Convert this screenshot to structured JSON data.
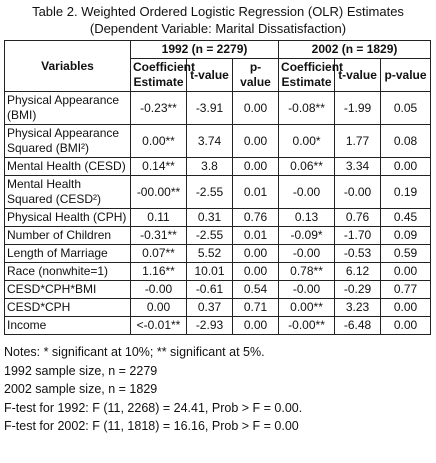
{
  "title": [
    "Table 2. Weighted Ordered Logistic Regression (OLR) Estimates",
    "(Dependent Variable: Marital Dissatisfaction)"
  ],
  "table": {
    "variables_header": "Variables",
    "groups": [
      "1992 (n = 2279)",
      "2002 (n = 1829)"
    ],
    "columns": [
      "Coefficient Estimate",
      "t-value",
      "p-value",
      "Coefficient Estimate",
      "t-value",
      "p-value"
    ],
    "rows": [
      [
        "Physical Appearance (BMI)",
        "-0.23**",
        "-3.91",
        "0.00",
        "-0.08**",
        "-1.99",
        "0.05"
      ],
      [
        "Physical Appearance Squared (BMI²)",
        "0.00**",
        "3.74",
        "0.00",
        "0.00*",
        "1.77",
        "0.08"
      ],
      [
        "Mental Health (CESD)",
        "0.14**",
        "3.8",
        "0.00",
        "0.06**",
        "3.34",
        "0.00"
      ],
      [
        "Mental Health Squared (CESD²)",
        "-00.00**",
        "-2.55",
        "0.01",
        "-0.00",
        "-0.00",
        "0.19"
      ],
      [
        "Physical Health (CPH)",
        "0.11",
        "0.31",
        "0.76",
        "0.13",
        "0.76",
        "0.45"
      ],
      [
        "Number of Children",
        "-0.31**",
        "-2.55",
        "0.01",
        "-0.09*",
        "-1.70",
        "0.09"
      ],
      [
        "Length of Marriage",
        "0.07**",
        "5.52",
        "0.00",
        "-0.00",
        "-0.53",
        "0.59"
      ],
      [
        "Race (nonwhite=1)",
        "1.16**",
        "10.01",
        "0.00",
        "0.78**",
        "6.12",
        "0.00"
      ],
      [
        "CESD*CPH*BMI",
        "-0.00",
        "-0.61",
        "0.54",
        "-0.00",
        "-0.29",
        "0.77"
      ],
      [
        "CESD*CPH",
        "0.00",
        "0.37",
        "0.71",
        "0.00**",
        "3.23",
        "0.00"
      ],
      [
        "Income",
        "<-0.01**",
        "-2.93",
        "0.00",
        "-0.00**",
        "-6.48",
        "0.00"
      ]
    ]
  },
  "notes": [
    "Notes: * significant at 10%; ** significant at 5%.",
    "1992 sample size, n = 2279",
    "2002 sample size, n = 1829",
    "F-test for 1992: F (11, 2268) = 24.41, Prob > F = 0.00.",
    "F-test for 2002: F (11, 1818) = 16.16, Prob > F = 0.00"
  ]
}
